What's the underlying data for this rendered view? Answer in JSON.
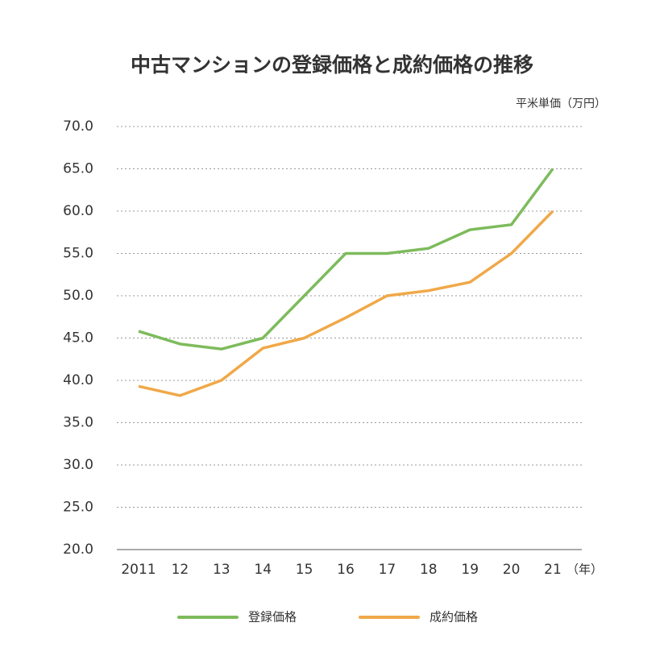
{
  "chart_data": {
    "type": "line",
    "title": "中古マンションの登録価格と成約価格の推移",
    "y_label": "平米単価（万円）",
    "x_label": "（年）",
    "categories": [
      "2011",
      "12",
      "13",
      "14",
      "15",
      "16",
      "17",
      "18",
      "19",
      "20",
      "21"
    ],
    "series": [
      {
        "name": "登録価格",
        "color": "#7dbb5c",
        "values": [
          45.8,
          44.3,
          43.7,
          45.0,
          50.0,
          55.0,
          55.0,
          55.6,
          57.8,
          58.4,
          65.0
        ]
      },
      {
        "name": "成約価格",
        "color": "#f0a848",
        "values": [
          39.3,
          38.2,
          40.0,
          43.8,
          45.0,
          47.4,
          50.0,
          50.6,
          51.6,
          55.0,
          60.0
        ]
      }
    ],
    "ylim": [
      20,
      70
    ],
    "yticks": [
      {
        "value": 20,
        "label": "20.0"
      },
      {
        "value": 25,
        "label": "25.0"
      },
      {
        "value": 30,
        "label": "30.0"
      },
      {
        "value": 35,
        "label": "35.0"
      },
      {
        "value": 40,
        "label": "40.0"
      },
      {
        "value": 45,
        "label": "45.0"
      },
      {
        "value": 50,
        "label": "50.0"
      },
      {
        "value": 55,
        "label": "55.0"
      },
      {
        "value": 60,
        "label": "60.0"
      },
      {
        "value": 65,
        "label": "65.0"
      },
      {
        "value": 70,
        "label": "70.0"
      }
    ],
    "grid": true
  }
}
